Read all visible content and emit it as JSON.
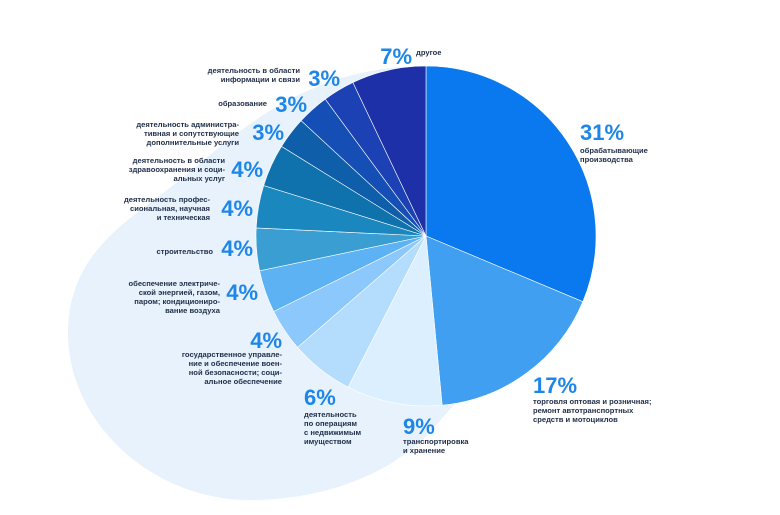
{
  "chart_data": {
    "type": "pie",
    "start_angle_deg": 0,
    "direction": "clockwise",
    "slices": [
      {
        "percent_label": "31%",
        "value": 31,
        "label_lines": [
          "обрабатывающие",
          "производства"
        ],
        "color": "#0a78ee"
      },
      {
        "percent_label": "17%",
        "value": 17,
        "label_lines": [
          "торговля оптовая и розничная;",
          "ремонт автотранспортных",
          "средств и мотоциклов"
        ],
        "color": "#419ff2"
      },
      {
        "percent_label": "9%",
        "value": 9,
        "label_lines": [
          "транспортировка",
          "и хранение"
        ],
        "color": "#dcefff"
      },
      {
        "percent_label": "6%",
        "value": 6,
        "label_lines": [
          "деятельность",
          "по операциям",
          "с недвижимым",
          "имуществом"
        ],
        "color": "#b4dcfd"
      },
      {
        "percent_label": "4%",
        "value": 4,
        "label_lines": [
          "государственное управле-",
          "ние и обеспечение воен-",
          "ной безопасности; соци-",
          "альное обеспечение"
        ],
        "color": "#8cc8fb"
      },
      {
        "percent_label": "4%",
        "value": 4,
        "label_lines": [
          "обеспечение электриче-",
          "ской энергией, газом,",
          "паром; кондициониро-",
          "вание воздуха"
        ],
        "color": "#5cb2f2"
      },
      {
        "percent_label": "4%",
        "value": 4,
        "label_lines": [
          "строительство"
        ],
        "color": "#3a9ed3"
      },
      {
        "percent_label": "4%",
        "value": 4,
        "label_lines": [
          "деятельность профес-",
          "сиональная, научная",
          "и техническая"
        ],
        "color": "#1a88bf"
      },
      {
        "percent_label": "4%",
        "value": 4,
        "label_lines": [
          "деятельность в области",
          "здравоохранения и соци-",
          "альных услуг"
        ],
        "color": "#0f72ac"
      },
      {
        "percent_label": "3%",
        "value": 3,
        "label_lines": [
          "деятельность администра-",
          "тивная и сопутствующие",
          "дополнительные услуги"
        ],
        "color": "#0e5ea9"
      },
      {
        "percent_label": "3%",
        "value": 3,
        "label_lines": [
          "образование"
        ],
        "color": "#154fb5"
      },
      {
        "percent_label": "3%",
        "value": 3,
        "label_lines": [
          "деятельность в области",
          "информации и связи"
        ],
        "color": "#1c41b5"
      },
      {
        "percent_label": "7%",
        "value": 7,
        "label_lines": [
          "другое"
        ],
        "color": "#1e30a8"
      }
    ],
    "background_shape_color": "#e7f2fd"
  }
}
